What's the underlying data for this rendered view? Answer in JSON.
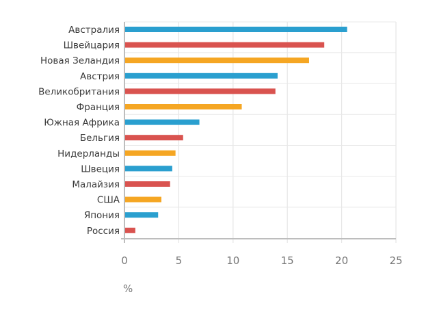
{
  "chart_data": {
    "type": "bar",
    "orientation": "horizontal",
    "title": "",
    "xlabel": "%",
    "ylabel": "",
    "xlim": [
      0,
      25
    ],
    "xticks": [
      0,
      5,
      10,
      15,
      20,
      25
    ],
    "grid": true,
    "legend": "none",
    "categories": [
      "Австралия",
      "Швейцария",
      "Новая Зеландия",
      "Австрия",
      "Великобритания",
      "Франция",
      "Южная Африка",
      "Бельгия",
      "Нидерланды",
      "Швеция",
      "Малайзия",
      "США",
      "Япония",
      "Россия"
    ],
    "values": [
      20.5,
      18.4,
      17.0,
      14.1,
      13.9,
      10.8,
      6.9,
      5.4,
      4.7,
      4.4,
      4.2,
      3.4,
      3.1,
      1.0
    ],
    "colors": [
      "#2a9fcf",
      "#d9534f",
      "#f5a623",
      "#2a9fcf",
      "#d9534f",
      "#f5a623",
      "#2a9fcf",
      "#d9534f",
      "#f5a623",
      "#2a9fcf",
      "#d9534f",
      "#f5a623",
      "#2a9fcf",
      "#d9534f"
    ]
  }
}
